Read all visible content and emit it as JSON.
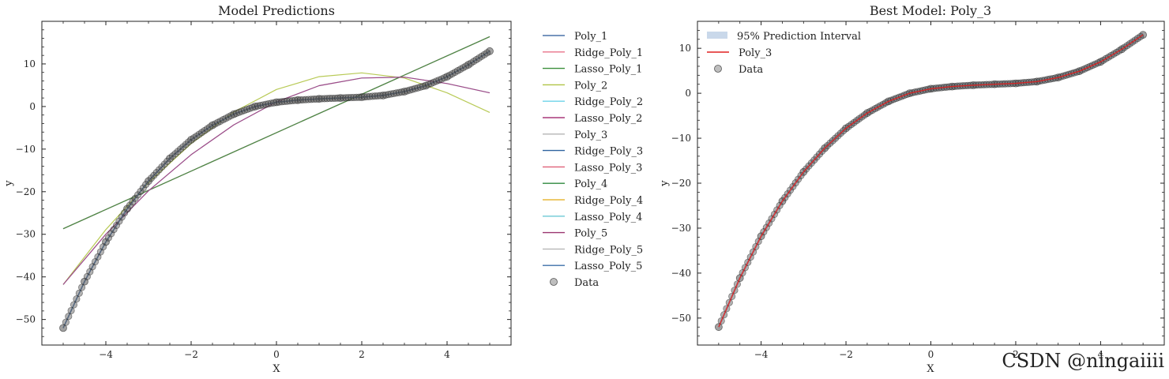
{
  "chart_data": [
    {
      "type": "line",
      "title": "Model Predictions",
      "xlabel": "X",
      "ylabel": "y",
      "xlim": [
        -5.5,
        5.5
      ],
      "ylim": [
        -56,
        20
      ],
      "xticks": [
        -4,
        -2,
        0,
        2,
        4
      ],
      "xtick_labels": [
        "−4",
        "−2",
        "0",
        "2",
        "4"
      ],
      "yticks": [
        -50,
        -40,
        -30,
        -20,
        -10,
        0,
        10
      ],
      "ytick_labels": [
        "−50",
        "−40",
        "−30",
        "−20",
        "−10",
        "0",
        "10"
      ],
      "legend_position": "outside right",
      "series": [
        {
          "name": "Poly_1",
          "color": "#4a72a8",
          "x": [
            -5,
            5
          ],
          "y": [
            -28.7,
            16.4
          ]
        },
        {
          "name": "Ridge_Poly_1",
          "color": "#e8738a",
          "x": [
            -5,
            5
          ],
          "y": [
            -28.7,
            16.4
          ]
        },
        {
          "name": "Lasso_Poly_1",
          "color": "#3a8f3a",
          "x": [
            -5,
            5
          ],
          "y": [
            -28.7,
            16.4
          ]
        },
        {
          "name": "Poly_2",
          "color": "#b0c444",
          "x": [
            -5,
            -4,
            -3,
            -2,
            -1,
            0,
            1,
            2,
            3,
            4,
            5
          ],
          "y": [
            -41.8,
            -28.9,
            -17.9,
            -8.7,
            -1.3,
            4.0,
            7.0,
            7.9,
            6.7,
            3.2,
            -1.4
          ]
        },
        {
          "name": "Ridge_Poly_2",
          "color": "#6cd3e8",
          "x": [
            -5,
            -4,
            -3,
            -2,
            -1,
            0,
            1,
            2,
            3,
            4,
            5
          ],
          "y": [
            -41.8,
            -30.0,
            -19.8,
            -11.3,
            -4.3,
            1.1,
            4.9,
            6.7,
            6.9,
            5.4,
            3.2
          ]
        },
        {
          "name": "Lasso_Poly_2",
          "color": "#a8387a",
          "x": [
            -5,
            -4,
            -3,
            -2,
            -1,
            0,
            1,
            2,
            3,
            4,
            5
          ],
          "y": [
            -41.8,
            -30.0,
            -19.8,
            -11.3,
            -4.3,
            1.1,
            4.9,
            6.7,
            6.9,
            5.4,
            3.2
          ]
        },
        {
          "name": "Poly_3",
          "color": "#b4b4b4",
          "x": [
            -5,
            -4.5,
            -4,
            -3.5,
            -3,
            -2.5,
            -2,
            -1.5,
            -1,
            -0.5,
            0,
            0.5,
            1,
            1.5,
            2,
            2.5,
            3,
            3.5,
            4,
            4.5,
            5
          ],
          "y": [
            -52,
            -41.1,
            -31.8,
            -24.0,
            -17.5,
            -12.2,
            -7.8,
            -4.4,
            -1.8,
            0.0,
            1.0,
            1.5,
            1.8,
            2.0,
            2.2,
            2.6,
            3.5,
            4.9,
            7.0,
            9.8,
            13.0
          ]
        },
        {
          "name": "Ridge_Poly_3",
          "color": "#2e63a0",
          "x": [
            -5,
            -4.5,
            -4,
            -3.5,
            -3,
            -2.5,
            -2,
            -1.5,
            -1,
            -0.5,
            0,
            0.5,
            1,
            1.5,
            2,
            2.5,
            3,
            3.5,
            4,
            4.5,
            5
          ],
          "y": [
            -52,
            -41.1,
            -31.8,
            -24.0,
            -17.5,
            -12.2,
            -7.8,
            -4.4,
            -1.8,
            0.0,
            1.0,
            1.5,
            1.8,
            2.0,
            2.2,
            2.6,
            3.5,
            4.9,
            7.0,
            9.8,
            13.0
          ]
        },
        {
          "name": "Lasso_Poly_3",
          "color": "#e06078",
          "x": [
            -5,
            -4.5,
            -4,
            -3.5,
            -3,
            -2.5,
            -2,
            -1.5,
            -1,
            -0.5,
            0,
            0.5,
            1,
            1.5,
            2,
            2.5,
            3,
            3.5,
            4,
            4.5,
            5
          ],
          "y": [
            -52,
            -41.1,
            -31.8,
            -24.0,
            -17.5,
            -12.2,
            -7.8,
            -4.4,
            -1.8,
            0.0,
            1.0,
            1.5,
            1.8,
            2.0,
            2.2,
            2.6,
            3.5,
            4.9,
            7.0,
            9.8,
            13.0
          ]
        },
        {
          "name": "Poly_4",
          "color": "#2d8a3e",
          "x": [
            -5,
            -4.5,
            -4,
            -3.5,
            -3,
            -2.5,
            -2,
            -1.5,
            -1,
            -0.5,
            0,
            0.5,
            1,
            1.5,
            2,
            2.5,
            3,
            3.5,
            4,
            4.5,
            5
          ],
          "y": [
            -52,
            -41.1,
            -31.8,
            -24.0,
            -17.5,
            -12.2,
            -7.8,
            -4.4,
            -1.8,
            0.0,
            1.0,
            1.5,
            1.8,
            2.0,
            2.2,
            2.6,
            3.5,
            4.9,
            7.0,
            9.8,
            13.0
          ]
        },
        {
          "name": "Ridge_Poly_4",
          "color": "#e8b83a",
          "x": [
            -5,
            -4.5,
            -4,
            -3.5,
            -3,
            -2.5,
            -2,
            -1.5,
            -1,
            -0.5,
            0,
            0.5,
            1,
            1.5,
            2,
            2.5,
            3,
            3.5,
            4,
            4.5,
            5
          ],
          "y": [
            -52,
            -41.1,
            -31.8,
            -24.0,
            -17.5,
            -12.2,
            -7.8,
            -4.4,
            -1.8,
            0.0,
            1.0,
            1.5,
            1.8,
            2.0,
            2.2,
            2.6,
            3.5,
            4.9,
            7.0,
            9.8,
            13.0
          ]
        },
        {
          "name": "Lasso_Poly_4",
          "color": "#6cc9d6",
          "x": [
            -5,
            -4.5,
            -4,
            -3.5,
            -3,
            -2.5,
            -2,
            -1.5,
            -1,
            -0.5,
            0,
            0.5,
            1,
            1.5,
            2,
            2.5,
            3,
            3.5,
            4,
            4.5,
            5
          ],
          "y": [
            -52,
            -41.1,
            -31.8,
            -24.0,
            -17.5,
            -12.2,
            -7.8,
            -4.4,
            -1.8,
            0.0,
            1.0,
            1.5,
            1.8,
            2.0,
            2.2,
            2.6,
            3.5,
            4.9,
            7.0,
            9.8,
            13.0
          ]
        },
        {
          "name": "Poly_5",
          "color": "#9a3570",
          "x": [
            -5,
            -4.5,
            -4,
            -3.5,
            -3,
            -2.5,
            -2,
            -1.5,
            -1,
            -0.5,
            0,
            0.5,
            1,
            1.5,
            2,
            2.5,
            3,
            3.5,
            4,
            4.5,
            5
          ],
          "y": [
            -52,
            -41.1,
            -31.8,
            -24.0,
            -17.5,
            -12.2,
            -7.8,
            -4.4,
            -1.8,
            0.0,
            1.0,
            1.5,
            1.8,
            2.0,
            2.2,
            2.6,
            3.5,
            4.9,
            7.0,
            9.8,
            13.0
          ]
        },
        {
          "name": "Ridge_Poly_5",
          "color": "#b8b8b8",
          "x": [
            -5,
            -4.5,
            -4,
            -3.5,
            -3,
            -2.5,
            -2,
            -1.5,
            -1,
            -0.5,
            0,
            0.5,
            1,
            1.5,
            2,
            2.5,
            3,
            3.5,
            4,
            4.5,
            5
          ],
          "y": [
            -52,
            -41.1,
            -31.8,
            -24.0,
            -17.5,
            -12.2,
            -7.8,
            -4.4,
            -1.8,
            0.0,
            1.0,
            1.5,
            1.8,
            2.0,
            2.2,
            2.6,
            3.5,
            4.9,
            7.0,
            9.8,
            13.0
          ]
        },
        {
          "name": "Lasso_Poly_5",
          "color": "#3c6fa8",
          "x": [
            -5,
            -4.5,
            -4,
            -3.5,
            -3,
            -2.5,
            -2,
            -1.5,
            -1,
            -0.5,
            0,
            0.5,
            1,
            1.5,
            2,
            2.5,
            3,
            3.5,
            4,
            4.5,
            5
          ],
          "y": [
            -52,
            -41.1,
            -31.8,
            -24.0,
            -17.5,
            -12.2,
            -7.8,
            -4.4,
            -1.8,
            0.0,
            1.0,
            1.5,
            1.8,
            2.0,
            2.2,
            2.6,
            3.5,
            4.9,
            7.0,
            9.8,
            13.0
          ]
        }
      ],
      "scatter": {
        "name": "Data",
        "color": "#555555",
        "x": [
          -5,
          -4.5,
          -4,
          -3.5,
          -3,
          -2.5,
          -2,
          -1.5,
          -1,
          -0.5,
          0,
          0.5,
          1,
          1.5,
          2,
          2.5,
          3,
          3.5,
          4,
          4.5,
          5
        ],
        "y": [
          -52,
          -41.1,
          -31.8,
          -24.0,
          -17.5,
          -12.2,
          -7.8,
          -4.4,
          -1.8,
          0.0,
          1.0,
          1.5,
          1.8,
          2.0,
          2.2,
          2.6,
          3.5,
          4.9,
          7.0,
          9.8,
          13.0
        ]
      }
    },
    {
      "type": "line",
      "title": "Best Model: Poly_3",
      "xlabel": "X",
      "ylabel": "y",
      "xlim": [
        -5.5,
        5.5
      ],
      "ylim": [
        -56,
        16
      ],
      "xticks": [
        -4,
        -2,
        0,
        2,
        4
      ],
      "xtick_labels": [
        "−4",
        "−2",
        "0",
        "2",
        "4"
      ],
      "yticks": [
        -50,
        -40,
        -30,
        -20,
        -10,
        0,
        10
      ],
      "ytick_labels": [
        "−50",
        "−40",
        "−30",
        "−20",
        "−10",
        "0",
        "10"
      ],
      "legend_position": "upper left",
      "interval": {
        "name": "95% Prediction Interval",
        "color": "#c9d8ea",
        "x": [
          -5,
          -4.5,
          -4,
          -3.5,
          -3,
          -2.5,
          -2,
          -1.5,
          -1,
          -0.5,
          0,
          0.5,
          1,
          1.5,
          2,
          2.5,
          3,
          3.5,
          4,
          4.5,
          5
        ],
        "lower": [
          -52.6,
          -41.7,
          -32.4,
          -24.6,
          -18.1,
          -12.8,
          -8.4,
          -5.0,
          -2.4,
          -0.6,
          0.4,
          0.9,
          1.2,
          1.4,
          1.6,
          2.0,
          2.9,
          4.3,
          6.4,
          9.2,
          12.4
        ],
        "upper": [
          -51.4,
          -40.5,
          -31.2,
          -23.4,
          -16.9,
          -11.6,
          -7.2,
          -3.8,
          -1.2,
          0.6,
          1.6,
          2.1,
          2.4,
          2.6,
          2.8,
          3.2,
          4.1,
          5.5,
          7.6,
          10.4,
          13.6
        ]
      },
      "series": [
        {
          "name": "Poly_3",
          "color": "#e02020",
          "x": [
            -5,
            -4.5,
            -4,
            -3.5,
            -3,
            -2.5,
            -2,
            -1.5,
            -1,
            -0.5,
            0,
            0.5,
            1,
            1.5,
            2,
            2.5,
            3,
            3.5,
            4,
            4.5,
            5
          ],
          "y": [
            -52,
            -41.1,
            -31.8,
            -24.0,
            -17.5,
            -12.2,
            -7.8,
            -4.4,
            -1.8,
            0.0,
            1.0,
            1.5,
            1.8,
            2.0,
            2.2,
            2.6,
            3.5,
            4.9,
            7.0,
            9.8,
            13.0
          ]
        }
      ],
      "scatter": {
        "name": "Data",
        "color": "#555555",
        "x": [
          -5,
          -4.5,
          -4,
          -3.5,
          -3,
          -2.5,
          -2,
          -1.5,
          -1,
          -0.5,
          0,
          0.5,
          1,
          1.5,
          2,
          2.5,
          3,
          3.5,
          4,
          4.5,
          5
        ],
        "y": [
          -52,
          -41.1,
          -31.8,
          -24.0,
          -17.5,
          -12.2,
          -7.8,
          -4.4,
          -1.8,
          0.0,
          1.0,
          1.5,
          1.8,
          2.0,
          2.2,
          2.6,
          3.5,
          4.9,
          7.0,
          9.8,
          13.0
        ]
      }
    }
  ],
  "watermark": "CSDN @ningaiiii"
}
